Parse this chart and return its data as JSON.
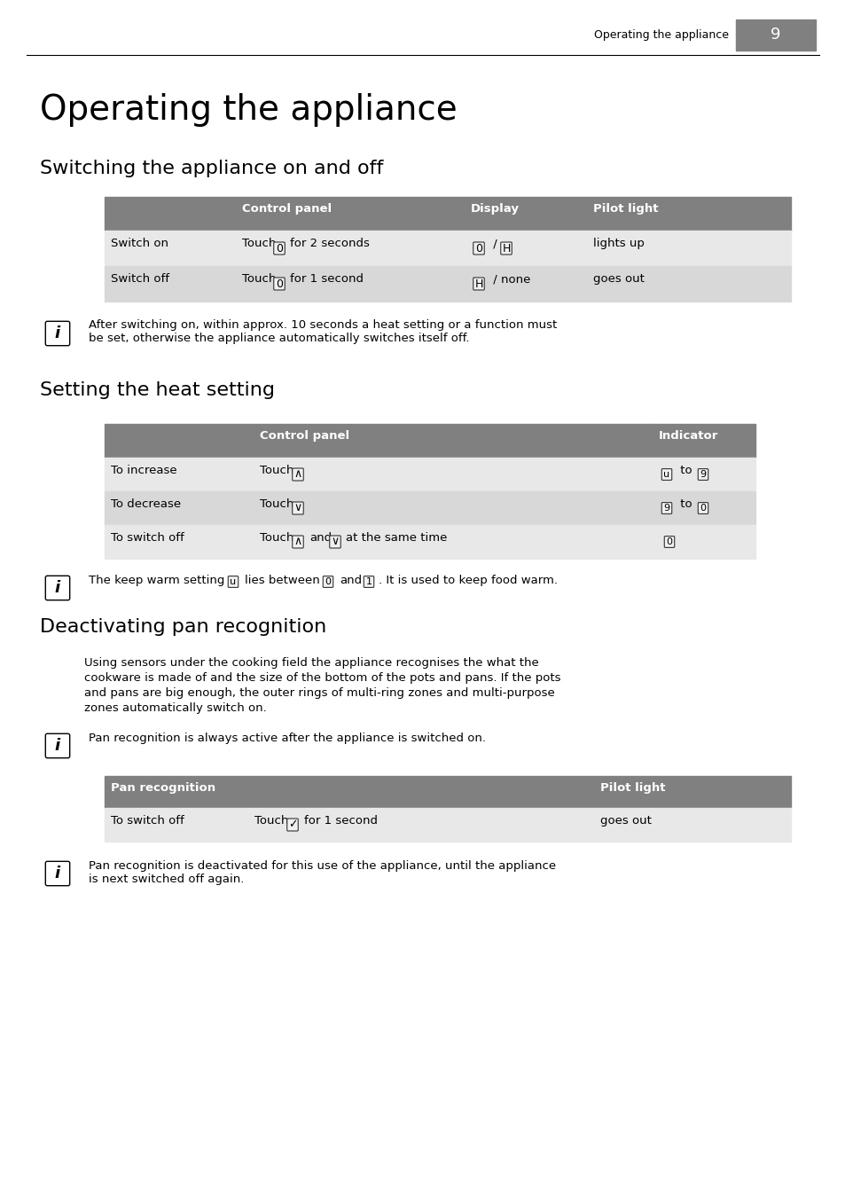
{
  "page_header_text": "Operating the appliance",
  "page_number": "9",
  "title": "Operating the appliance",
  "section1_title": "Switching the appliance on and off",
  "table1_header": [
    "",
    "Control panel",
    "Display",
    "Pilot light"
  ],
  "table1_row1": [
    "Switch on",
    "Touch  for 2 seconds",
    "/ ",
    "lights up"
  ],
  "table1_row2": [
    "Switch off",
    "Touch  for 1 second",
    " / none",
    "goes out"
  ],
  "note1": "After switching on, within approx. 10 seconds a heat setting or a function must\nbe set, otherwise the appliance automatically switches itself off.",
  "section2_title": "Setting the heat setting",
  "table2_header": [
    "",
    "Control panel",
    "Indicator"
  ],
  "table2_row1": [
    "To increase",
    "Touch ",
    " to "
  ],
  "table2_row2": [
    "To decrease",
    "Touch ",
    " to "
  ],
  "table2_row3": [
    "To switch off",
    "Touch  and  at the same time",
    ""
  ],
  "note2": "The keep warm setting  lies between  and . It is used to keep food warm.",
  "section3_title": "Deactivating pan recognition",
  "para3_line1": "Using sensors under the cooking field the appliance recognises the what the",
  "para3_line2": "cookware is made of and the size of the bottom of the pots and pans. If the pots",
  "para3_line3": "and pans are big enough, the outer rings of multi-ring zones and multi-purpose",
  "para3_line4": "zones automatically switch on.",
  "note3": "Pan recognition is always active after the appliance is switched on.",
  "table3_header": [
    "Pan recognition",
    "",
    "Pilot light"
  ],
  "table3_row1": [
    "To switch off",
    "Touch  for 1 second",
    "goes out"
  ],
  "note4": "Pan recognition is deactivated for this use of the appliance, until the appliance\nis next switched off again.",
  "bg_color": "#ffffff",
  "header_gray": "#808080",
  "table_gray_dark": "#808080",
  "table_row_light": "#e8e8e8",
  "table_row_mid": "#d8d8d8",
  "white": "#ffffff",
  "black": "#000000"
}
